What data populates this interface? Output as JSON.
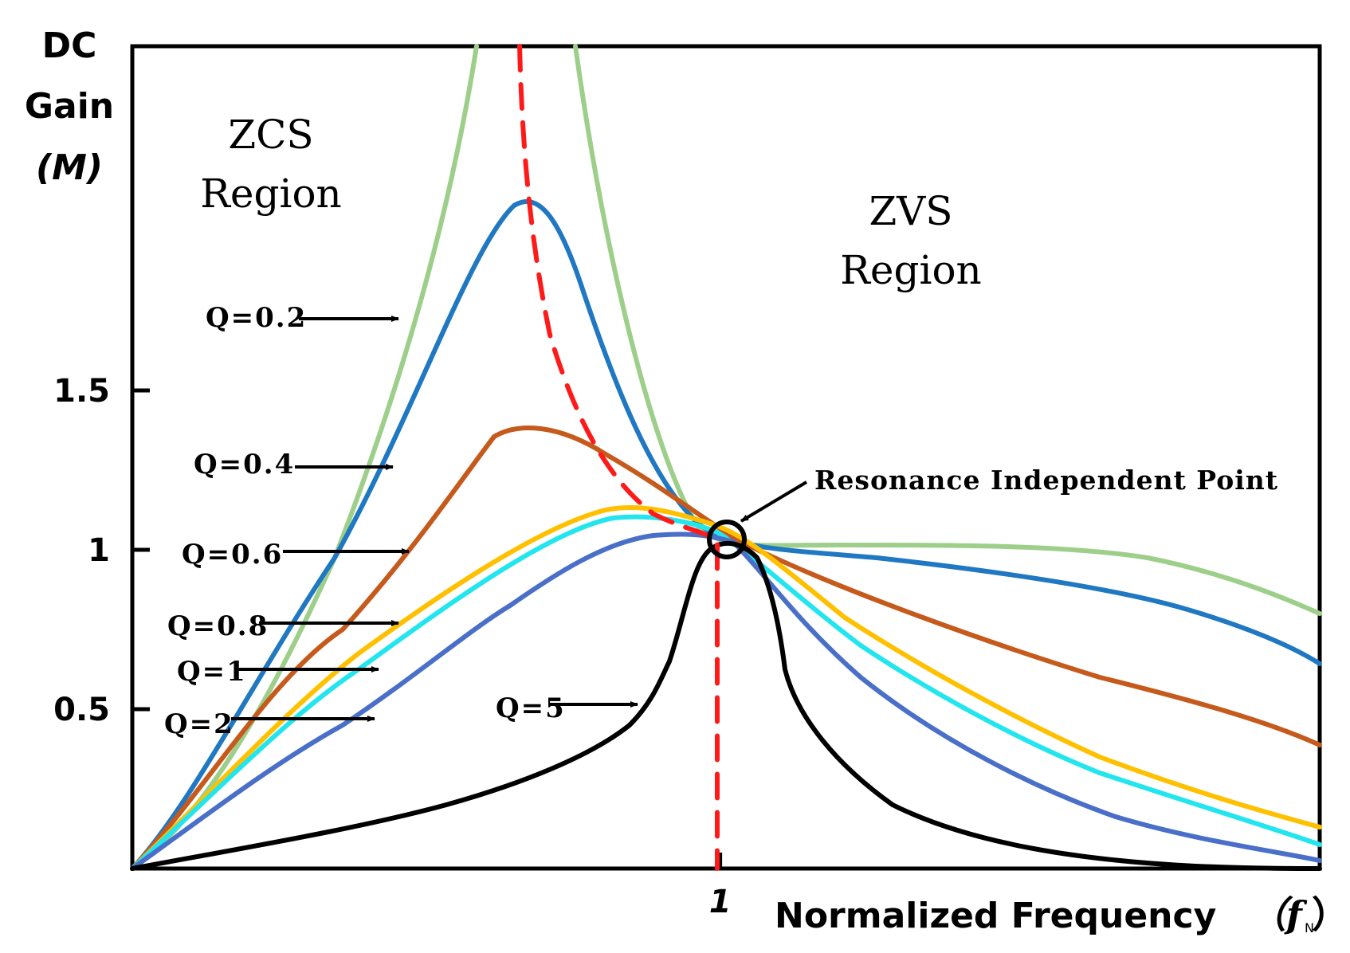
{
  "chart_data": {
    "type": "line",
    "title": "",
    "ylabel": [
      "DC",
      "Gain",
      "(M)"
    ],
    "xlabel": "Normalized Frequency",
    "xlabel_symbol": "（f",
    "xlabel_subscript": "N",
    "xlabel_close": "）",
    "x_ticks": [
      {
        "value": 1,
        "label": "1"
      }
    ],
    "y_ticks": [
      {
        "value": 0.5,
        "label": "0.5"
      },
      {
        "value": 1,
        "label": "1"
      },
      {
        "value": 1.5,
        "label": "1.5"
      }
    ],
    "xlim": [
      0,
      2.02
    ],
    "ylim": [
      0,
      2.58
    ],
    "grid": false,
    "regions": {
      "zcs": [
        "ZCS",
        "Region"
      ],
      "zvs": [
        "ZVS",
        "Region"
      ]
    },
    "annotation": "Resonance Independent Point",
    "series": [
      {
        "name": "Q=0.2",
        "label": "Q=0.2",
        "color": "#9dcf8a",
        "peak_label": ""
      },
      {
        "name": "Q=0.4",
        "label": "Q=0.4",
        "color": "#1f78c1"
      },
      {
        "name": "Q=0.6",
        "label": "Q=0.6",
        "color": "#c55a1c"
      },
      {
        "name": "Q=0.8",
        "label": "Q=0.8",
        "color": "#ffc000"
      },
      {
        "name": "Q=1",
        "label": "Q=1",
        "color": "#22e5ee"
      },
      {
        "name": "Q=2",
        "label": "Q=2",
        "color": "#4a6fc8"
      },
      {
        "name": "Q=5",
        "label": "Q=5",
        "color": "#000000"
      },
      {
        "name": "peak boundary",
        "label": "",
        "color": "#ff1a1a",
        "dashed": true
      }
    ]
  }
}
